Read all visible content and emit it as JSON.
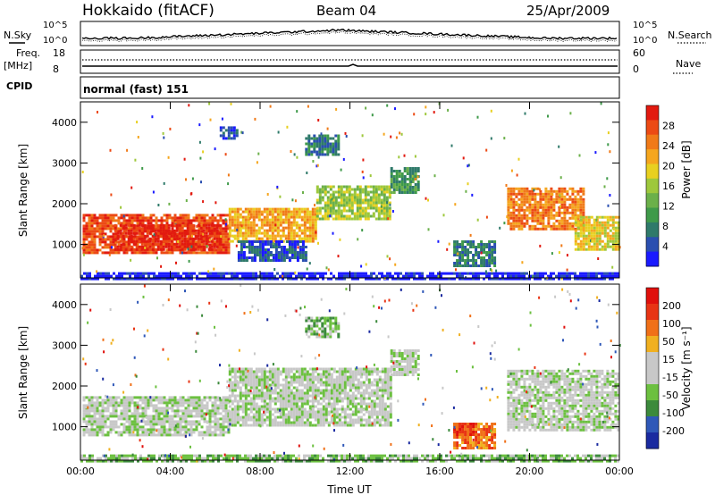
{
  "header": {
    "site": "Hokkaido (fitACF)",
    "beam": "Beam 04",
    "date": "25/Apr/2009"
  },
  "params": {
    "nsky_label": "N.Sky",
    "nsearch_label": "N.Search",
    "noise_ticks_left": [
      "10^5",
      "10^0"
    ],
    "noise_ticks_right": [
      "10^5",
      "10^0"
    ],
    "freq_label": "Freq.",
    "freq_unit": "[MHz]",
    "freq_ticks": [
      "18",
      "8"
    ],
    "nave_label": "Nave",
    "nave_ticks": [
      "60",
      "0"
    ],
    "cpid_label": "CPID",
    "cpid_text": "normal (fast) 151"
  },
  "chart_data": [
    {
      "type": "heatmap",
      "panel": "power",
      "ylabel": "Slant Range [km]",
      "xlabel": "",
      "x_ticks": [
        "00:00",
        "04:00",
        "08:00",
        "12:00",
        "16:00",
        "20:00",
        "00:00"
      ],
      "y_ticks": [
        1000,
        2000,
        3000,
        4000
      ],
      "xlim_hours": [
        0,
        24
      ],
      "ylim_km": [
        180,
        4500
      ],
      "colorbar": {
        "label": "Power [dB]",
        "ticks": [
          "28",
          "24",
          "20",
          "16",
          "12",
          "8",
          "4"
        ],
        "colors": [
          "#1a1aff",
          "#2a4fb0",
          "#2f7a6a",
          "#3f9a4a",
          "#6bb04a",
          "#9ec83c",
          "#e8d020",
          "#f5a61e",
          "#f07a18",
          "#ec4a14",
          "#e21a10"
        ]
      },
      "regions": [
        {
          "t0": 0.1,
          "t1": 6.6,
          "r0": 820,
          "r1": 1750,
          "level": 9
        },
        {
          "t0": 1.5,
          "t1": 6.2,
          "r0": 900,
          "r1": 1500,
          "level": 10
        },
        {
          "t0": 6.6,
          "t1": 10.5,
          "r0": 1050,
          "r1": 1900,
          "level": 7
        },
        {
          "t0": 10.5,
          "t1": 13.8,
          "r0": 1600,
          "r1": 2450,
          "level": 5
        },
        {
          "t0": 13.8,
          "t1": 15.0,
          "r0": 2300,
          "r1": 2900,
          "level": 3
        },
        {
          "t0": 7.0,
          "t1": 10.0,
          "r0": 600,
          "r1": 1100,
          "level": 1
        },
        {
          "t0": 6.2,
          "t1": 7.0,
          "r0": 3600,
          "r1": 3900,
          "level": 1
        },
        {
          "t0": 10.0,
          "t1": 11.5,
          "r0": 3200,
          "r1": 3700,
          "level": 2
        },
        {
          "t0": 16.6,
          "t1": 18.4,
          "r0": 500,
          "r1": 1100,
          "level": 2
        },
        {
          "t0": 19.0,
          "t1": 22.4,
          "r0": 1400,
          "r1": 2400,
          "level": 8
        },
        {
          "t0": 22.0,
          "t1": 24.0,
          "r0": 900,
          "r1": 1700,
          "level": 6
        },
        {
          "t0": 0.0,
          "t1": 24.0,
          "r0": 180,
          "r1": 320,
          "level": 0
        }
      ]
    },
    {
      "type": "heatmap",
      "panel": "velocity",
      "ylabel": "Slant Range [km]",
      "xlabel": "Time UT",
      "x_ticks": [
        "00:00",
        "04:00",
        "08:00",
        "12:00",
        "16:00",
        "20:00",
        "00:00"
      ],
      "y_ticks": [
        1000,
        2000,
        3000,
        4000
      ],
      "xlim_hours": [
        0,
        24
      ],
      "ylim_km": [
        180,
        4500
      ],
      "colorbar": {
        "label": "Velocity [m s⁻¹]",
        "ticks": [
          "200",
          "100",
          "50",
          "15",
          "-15",
          "-50",
          "-100",
          "-200"
        ],
        "colors": [
          "#1a2aa0",
          "#2f58b8",
          "#3c8a3c",
          "#6cc040",
          "#c8c8c8",
          "#c8c8c8",
          "#f0b020",
          "#f07018",
          "#e83414",
          "#e0100c"
        ]
      },
      "regions": [
        {
          "t0": 0.1,
          "t1": 6.6,
          "r0": 820,
          "r1": 1750,
          "level": 4
        },
        {
          "t0": 6.6,
          "t1": 13.8,
          "r0": 1050,
          "r1": 2450,
          "level": 4
        },
        {
          "t0": 13.8,
          "t1": 15.0,
          "r0": 2300,
          "r1": 2900,
          "level": 4
        },
        {
          "t0": 10.0,
          "t1": 11.5,
          "r0": 3200,
          "r1": 3700,
          "level": 3
        },
        {
          "t0": 16.6,
          "t1": 18.4,
          "r0": 500,
          "r1": 1100,
          "level": 7
        },
        {
          "t0": 16.6,
          "t1": 17.6,
          "r0": 800,
          "r1": 1100,
          "level": 8
        },
        {
          "t0": 19.0,
          "t1": 24.0,
          "r0": 900,
          "r1": 2400,
          "level": 4
        },
        {
          "t0": 0.0,
          "t1": 24.0,
          "r0": 180,
          "r1": 320,
          "level": 3
        }
      ]
    }
  ]
}
